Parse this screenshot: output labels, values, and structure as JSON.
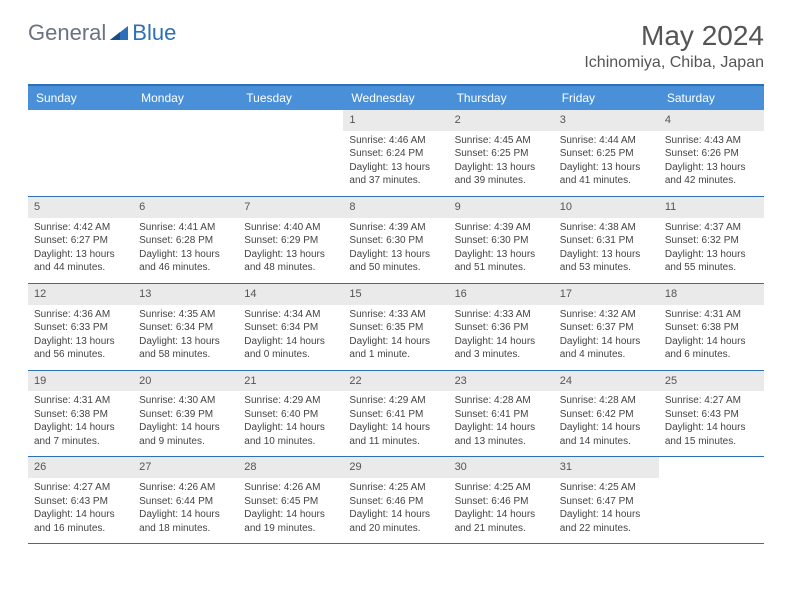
{
  "logo": {
    "part1": "General",
    "part2": "Blue"
  },
  "title": "May 2024",
  "location": "Ichinomiya, Chiba, Japan",
  "colors": {
    "header_bg": "#4a90d9",
    "border": "#2d6fb8",
    "daynum_bg": "#eaeaea",
    "text": "#444444",
    "title_text": "#555555"
  },
  "day_names": [
    "Sunday",
    "Monday",
    "Tuesday",
    "Wednesday",
    "Thursday",
    "Friday",
    "Saturday"
  ],
  "weeks": [
    [
      {
        "n": "",
        "sunrise": "",
        "sunset": "",
        "daylight": ""
      },
      {
        "n": "",
        "sunrise": "",
        "sunset": "",
        "daylight": ""
      },
      {
        "n": "",
        "sunrise": "",
        "sunset": "",
        "daylight": ""
      },
      {
        "n": "1",
        "sunrise": "Sunrise: 4:46 AM",
        "sunset": "Sunset: 6:24 PM",
        "daylight": "Daylight: 13 hours and 37 minutes."
      },
      {
        "n": "2",
        "sunrise": "Sunrise: 4:45 AM",
        "sunset": "Sunset: 6:25 PM",
        "daylight": "Daylight: 13 hours and 39 minutes."
      },
      {
        "n": "3",
        "sunrise": "Sunrise: 4:44 AM",
        "sunset": "Sunset: 6:25 PM",
        "daylight": "Daylight: 13 hours and 41 minutes."
      },
      {
        "n": "4",
        "sunrise": "Sunrise: 4:43 AM",
        "sunset": "Sunset: 6:26 PM",
        "daylight": "Daylight: 13 hours and 42 minutes."
      }
    ],
    [
      {
        "n": "5",
        "sunrise": "Sunrise: 4:42 AM",
        "sunset": "Sunset: 6:27 PM",
        "daylight": "Daylight: 13 hours and 44 minutes."
      },
      {
        "n": "6",
        "sunrise": "Sunrise: 4:41 AM",
        "sunset": "Sunset: 6:28 PM",
        "daylight": "Daylight: 13 hours and 46 minutes."
      },
      {
        "n": "7",
        "sunrise": "Sunrise: 4:40 AM",
        "sunset": "Sunset: 6:29 PM",
        "daylight": "Daylight: 13 hours and 48 minutes."
      },
      {
        "n": "8",
        "sunrise": "Sunrise: 4:39 AM",
        "sunset": "Sunset: 6:30 PM",
        "daylight": "Daylight: 13 hours and 50 minutes."
      },
      {
        "n": "9",
        "sunrise": "Sunrise: 4:39 AM",
        "sunset": "Sunset: 6:30 PM",
        "daylight": "Daylight: 13 hours and 51 minutes."
      },
      {
        "n": "10",
        "sunrise": "Sunrise: 4:38 AM",
        "sunset": "Sunset: 6:31 PM",
        "daylight": "Daylight: 13 hours and 53 minutes."
      },
      {
        "n": "11",
        "sunrise": "Sunrise: 4:37 AM",
        "sunset": "Sunset: 6:32 PM",
        "daylight": "Daylight: 13 hours and 55 minutes."
      }
    ],
    [
      {
        "n": "12",
        "sunrise": "Sunrise: 4:36 AM",
        "sunset": "Sunset: 6:33 PM",
        "daylight": "Daylight: 13 hours and 56 minutes."
      },
      {
        "n": "13",
        "sunrise": "Sunrise: 4:35 AM",
        "sunset": "Sunset: 6:34 PM",
        "daylight": "Daylight: 13 hours and 58 minutes."
      },
      {
        "n": "14",
        "sunrise": "Sunrise: 4:34 AM",
        "sunset": "Sunset: 6:34 PM",
        "daylight": "Daylight: 14 hours and 0 minutes."
      },
      {
        "n": "15",
        "sunrise": "Sunrise: 4:33 AM",
        "sunset": "Sunset: 6:35 PM",
        "daylight": "Daylight: 14 hours and 1 minute."
      },
      {
        "n": "16",
        "sunrise": "Sunrise: 4:33 AM",
        "sunset": "Sunset: 6:36 PM",
        "daylight": "Daylight: 14 hours and 3 minutes."
      },
      {
        "n": "17",
        "sunrise": "Sunrise: 4:32 AM",
        "sunset": "Sunset: 6:37 PM",
        "daylight": "Daylight: 14 hours and 4 minutes."
      },
      {
        "n": "18",
        "sunrise": "Sunrise: 4:31 AM",
        "sunset": "Sunset: 6:38 PM",
        "daylight": "Daylight: 14 hours and 6 minutes."
      }
    ],
    [
      {
        "n": "19",
        "sunrise": "Sunrise: 4:31 AM",
        "sunset": "Sunset: 6:38 PM",
        "daylight": "Daylight: 14 hours and 7 minutes."
      },
      {
        "n": "20",
        "sunrise": "Sunrise: 4:30 AM",
        "sunset": "Sunset: 6:39 PM",
        "daylight": "Daylight: 14 hours and 9 minutes."
      },
      {
        "n": "21",
        "sunrise": "Sunrise: 4:29 AM",
        "sunset": "Sunset: 6:40 PM",
        "daylight": "Daylight: 14 hours and 10 minutes."
      },
      {
        "n": "22",
        "sunrise": "Sunrise: 4:29 AM",
        "sunset": "Sunset: 6:41 PM",
        "daylight": "Daylight: 14 hours and 11 minutes."
      },
      {
        "n": "23",
        "sunrise": "Sunrise: 4:28 AM",
        "sunset": "Sunset: 6:41 PM",
        "daylight": "Daylight: 14 hours and 13 minutes."
      },
      {
        "n": "24",
        "sunrise": "Sunrise: 4:28 AM",
        "sunset": "Sunset: 6:42 PM",
        "daylight": "Daylight: 14 hours and 14 minutes."
      },
      {
        "n": "25",
        "sunrise": "Sunrise: 4:27 AM",
        "sunset": "Sunset: 6:43 PM",
        "daylight": "Daylight: 14 hours and 15 minutes."
      }
    ],
    [
      {
        "n": "26",
        "sunrise": "Sunrise: 4:27 AM",
        "sunset": "Sunset: 6:43 PM",
        "daylight": "Daylight: 14 hours and 16 minutes."
      },
      {
        "n": "27",
        "sunrise": "Sunrise: 4:26 AM",
        "sunset": "Sunset: 6:44 PM",
        "daylight": "Daylight: 14 hours and 18 minutes."
      },
      {
        "n": "28",
        "sunrise": "Sunrise: 4:26 AM",
        "sunset": "Sunset: 6:45 PM",
        "daylight": "Daylight: 14 hours and 19 minutes."
      },
      {
        "n": "29",
        "sunrise": "Sunrise: 4:25 AM",
        "sunset": "Sunset: 6:46 PM",
        "daylight": "Daylight: 14 hours and 20 minutes."
      },
      {
        "n": "30",
        "sunrise": "Sunrise: 4:25 AM",
        "sunset": "Sunset: 6:46 PM",
        "daylight": "Daylight: 14 hours and 21 minutes."
      },
      {
        "n": "31",
        "sunrise": "Sunrise: 4:25 AM",
        "sunset": "Sunset: 6:47 PM",
        "daylight": "Daylight: 14 hours and 22 minutes."
      },
      {
        "n": "",
        "sunrise": "",
        "sunset": "",
        "daylight": ""
      }
    ]
  ]
}
